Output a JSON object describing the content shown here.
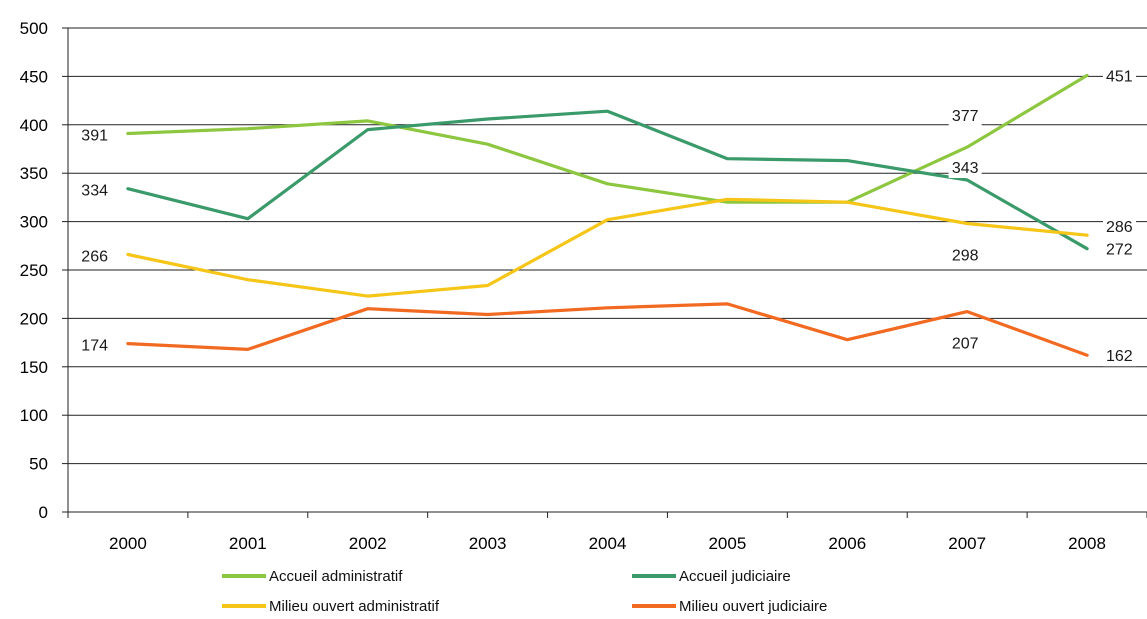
{
  "chart_data": {
    "type": "line",
    "title": "",
    "xlabel": "",
    "ylabel": "",
    "ylim": [
      0,
      500
    ],
    "yticks": [
      0,
      50,
      100,
      150,
      200,
      250,
      300,
      350,
      400,
      450,
      500
    ],
    "grid": true,
    "legend_position": "bottom",
    "categories": [
      "2000",
      "2001",
      "2002",
      "2003",
      "2004",
      "2005",
      "2006",
      "2007",
      "2008"
    ],
    "series": [
      {
        "name": "Accueil administratif",
        "color": "#8dc63f",
        "values": [
          391,
          396,
          404,
          380,
          339,
          320,
          320,
          377,
          451
        ],
        "labels": [
          "391",
          null,
          null,
          null,
          null,
          null,
          null,
          "377",
          "451"
        ]
      },
      {
        "name": "Accueil judiciaire",
        "color": "#3a9a6a",
        "values": [
          334,
          303,
          395,
          406,
          414,
          365,
          363,
          343,
          272
        ],
        "labels": [
          "334",
          null,
          null,
          null,
          null,
          null,
          null,
          "343",
          "272"
        ]
      },
      {
        "name": "Milieu ouvert administratif",
        "color": "#f5c518",
        "values": [
          266,
          240,
          223,
          234,
          302,
          323,
          320,
          298,
          286
        ],
        "labels": [
          "266",
          null,
          null,
          null,
          null,
          null,
          null,
          "298",
          "286"
        ]
      },
      {
        "name": "Milieu ouvert judiciaire",
        "color": "#f26a21",
        "values": [
          174,
          168,
          210,
          204,
          211,
          215,
          178,
          207,
          162
        ],
        "labels": [
          "174",
          null,
          null,
          null,
          null,
          null,
          null,
          "207",
          "162"
        ]
      }
    ]
  }
}
